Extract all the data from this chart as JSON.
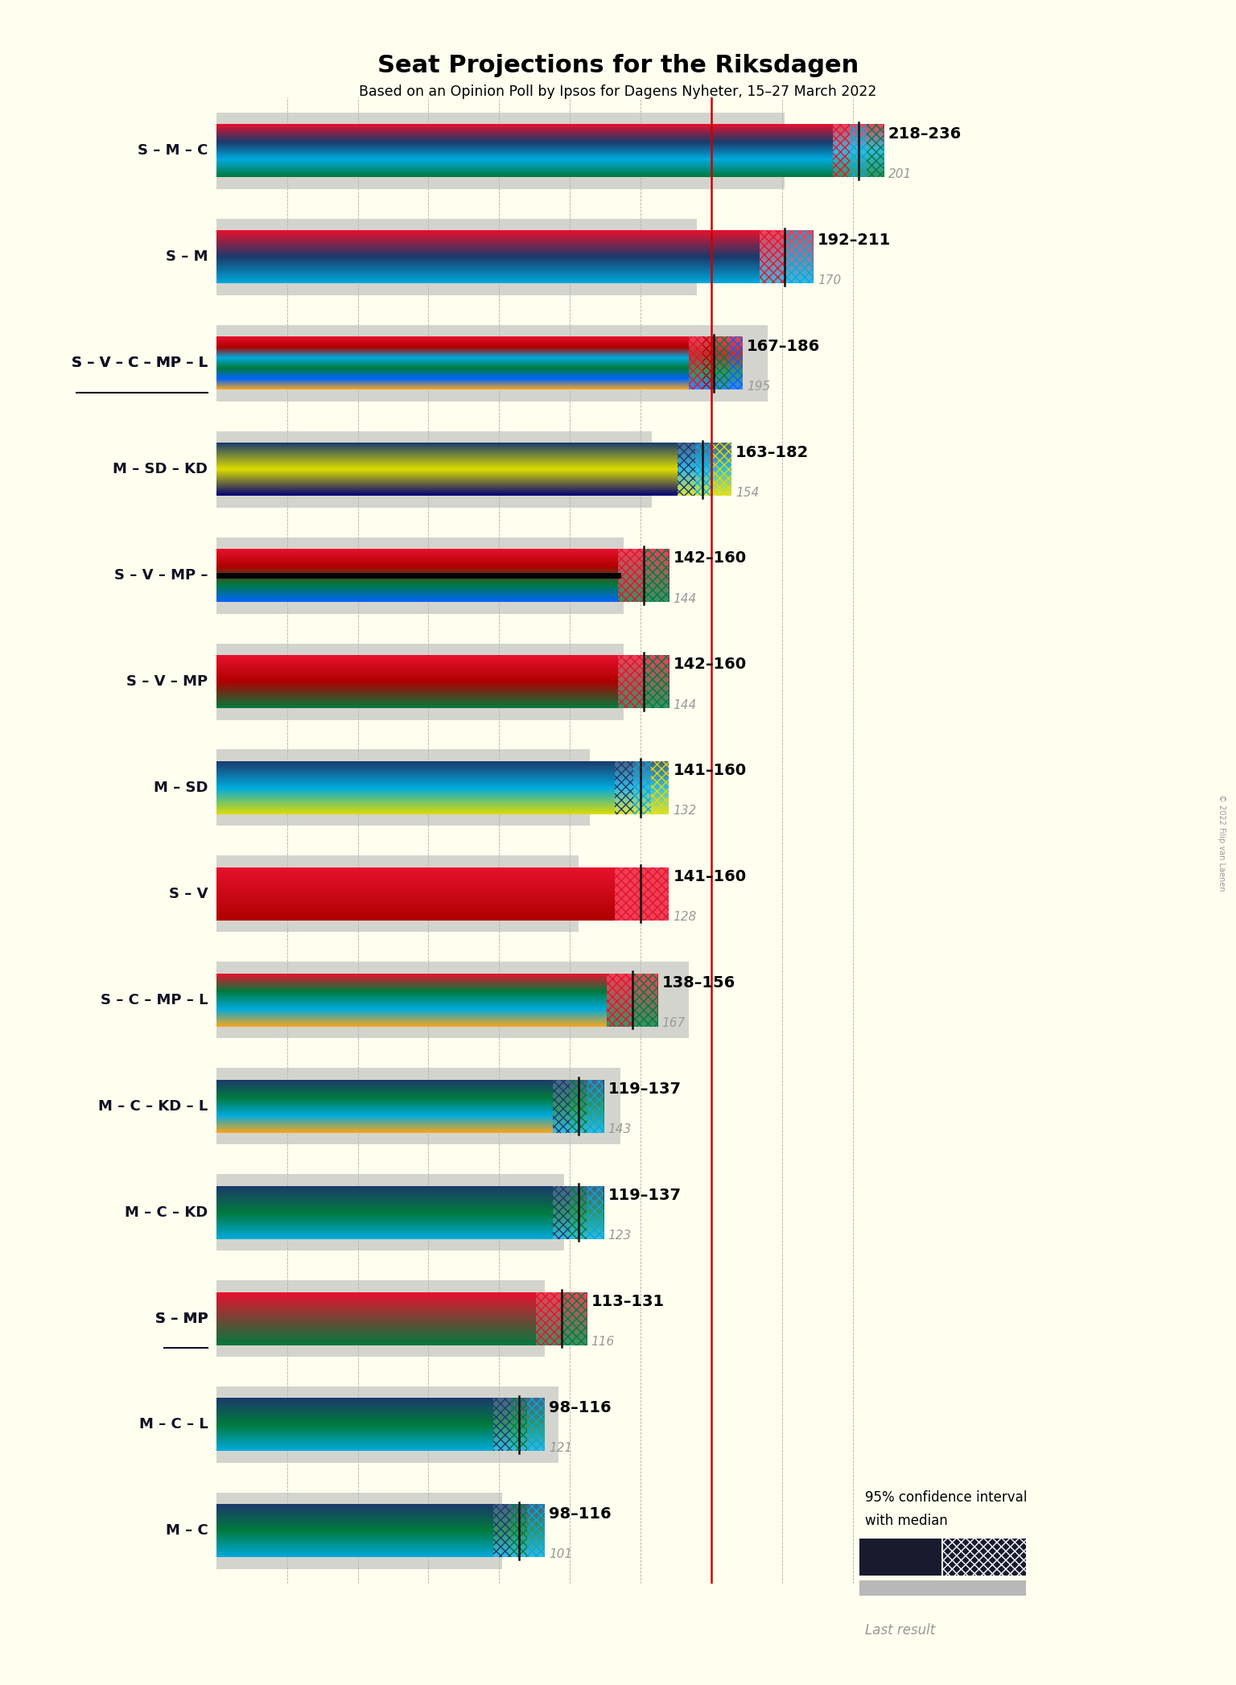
{
  "title": "Seat Projections for the Riksdagen",
  "subtitle": "Based on an Opinion Poll by Ipsos for Dagens Nyheter, 15–27 March 2022",
  "copyright": "© 2022 Filip van Laenen",
  "background_color": "#fffff0",
  "majority_line": 175,
  "x_min": 0,
  "x_max": 250,
  "coalitions": [
    {
      "label": "S – M – C",
      "underline": false,
      "ci_low": 218,
      "ci_high": 236,
      "median": 227,
      "last_result": 201,
      "bar_colors": [
        "#E8112d",
        "#1B3A6B",
        "#00AADD",
        "#007A3D"
      ],
      "ci_colors": [
        "#E8112d",
        "#00AADD",
        "#007A3D"
      ]
    },
    {
      "label": "S – M",
      "underline": false,
      "ci_low": 192,
      "ci_high": 211,
      "median": 201,
      "last_result": 170,
      "bar_colors": [
        "#E8112d",
        "#1B3A6B",
        "#00AADD"
      ],
      "ci_colors": [
        "#E8112d",
        "#00AADD"
      ]
    },
    {
      "label": "S – V – C – MP – L",
      "underline": true,
      "ci_low": 167,
      "ci_high": 186,
      "median": 176,
      "last_result": 195,
      "bar_colors": [
        "#E8112d",
        "#AF0000",
        "#00AADD",
        "#007A3D",
        "#0064FF",
        "#FAA61A"
      ],
      "ci_colors": [
        "#E8112d",
        "#AF0000",
        "#007A3D",
        "#0064FF"
      ]
    },
    {
      "label": "M – SD – KD",
      "underline": false,
      "ci_low": 163,
      "ci_high": 182,
      "median": 172,
      "last_result": 154,
      "bar_colors": [
        "#1B3A6B",
        "#DDDD00",
        "#000077"
      ],
      "ci_colors": [
        "#1B3A6B",
        "#00AADD",
        "#DDDD00"
      ]
    },
    {
      "label": "S – V – MP –",
      "underline": false,
      "ci_low": 142,
      "ci_high": 160,
      "median": 151,
      "last_result": 144,
      "black_line": true,
      "bar_colors": [
        "#E8112d",
        "#AF0000",
        "#007A3D",
        "#0064FF"
      ],
      "ci_colors": [
        "#E8112d",
        "#007A3D"
      ]
    },
    {
      "label": "S – V – MP",
      "underline": false,
      "ci_low": 142,
      "ci_high": 160,
      "median": 151,
      "last_result": 144,
      "bar_colors": [
        "#E8112d",
        "#AF0000",
        "#007A3D"
      ],
      "ci_colors": [
        "#E8112d",
        "#007A3D"
      ]
    },
    {
      "label": "M – SD",
      "underline": false,
      "ci_low": 141,
      "ci_high": 160,
      "median": 150,
      "last_result": 132,
      "bar_colors": [
        "#1B3A6B",
        "#00AADD",
        "#DDDD00"
      ],
      "ci_colors": [
        "#1B3A6B",
        "#00AADD",
        "#DDDD00"
      ]
    },
    {
      "label": "S – V",
      "underline": false,
      "ci_low": 141,
      "ci_high": 160,
      "median": 150,
      "last_result": 128,
      "bar_colors": [
        "#E8112d",
        "#AF0000"
      ],
      "ci_colors": [
        "#E8112d"
      ]
    },
    {
      "label": "S – C – MP – L",
      "underline": false,
      "ci_low": 138,
      "ci_high": 156,
      "median": 147,
      "last_result": 167,
      "bar_colors": [
        "#E8112d",
        "#007A3D",
        "#00AADD",
        "#FAA61A"
      ],
      "ci_colors": [
        "#E8112d",
        "#007A3D"
      ]
    },
    {
      "label": "M – C – KD – L",
      "underline": false,
      "ci_low": 119,
      "ci_high": 137,
      "median": 128,
      "last_result": 143,
      "bar_colors": [
        "#1B3A6B",
        "#007A3D",
        "#00AADD",
        "#FAA61A"
      ],
      "ci_colors": [
        "#1B3A6B",
        "#007A3D",
        "#00AADD"
      ]
    },
    {
      "label": "M – C – KD",
      "underline": false,
      "ci_low": 119,
      "ci_high": 137,
      "median": 128,
      "last_result": 123,
      "bar_colors": [
        "#1B3A6B",
        "#007A3D",
        "#00AADD"
      ],
      "ci_colors": [
        "#1B3A6B",
        "#007A3D",
        "#00AADD"
      ]
    },
    {
      "label": "S – MP",
      "underline": true,
      "ci_low": 113,
      "ci_high": 131,
      "median": 122,
      "last_result": 116,
      "bar_colors": [
        "#E8112d",
        "#007A3D"
      ],
      "ci_colors": [
        "#E8112d",
        "#007A3D"
      ]
    },
    {
      "label": "M – C – L",
      "underline": false,
      "ci_low": 98,
      "ci_high": 116,
      "median": 107,
      "last_result": 121,
      "bar_colors": [
        "#1B3A6B",
        "#007A3D",
        "#00AADD"
      ],
      "ci_colors": [
        "#1B3A6B",
        "#007A3D",
        "#00AADD"
      ]
    },
    {
      "label": "M – C",
      "underline": false,
      "ci_low": 98,
      "ci_high": 116,
      "median": 107,
      "last_result": 101,
      "bar_colors": [
        "#1B3A6B",
        "#007A3D",
        "#00AADD"
      ],
      "ci_colors": [
        "#1B3A6B",
        "#007A3D",
        "#00AADD"
      ]
    }
  ]
}
